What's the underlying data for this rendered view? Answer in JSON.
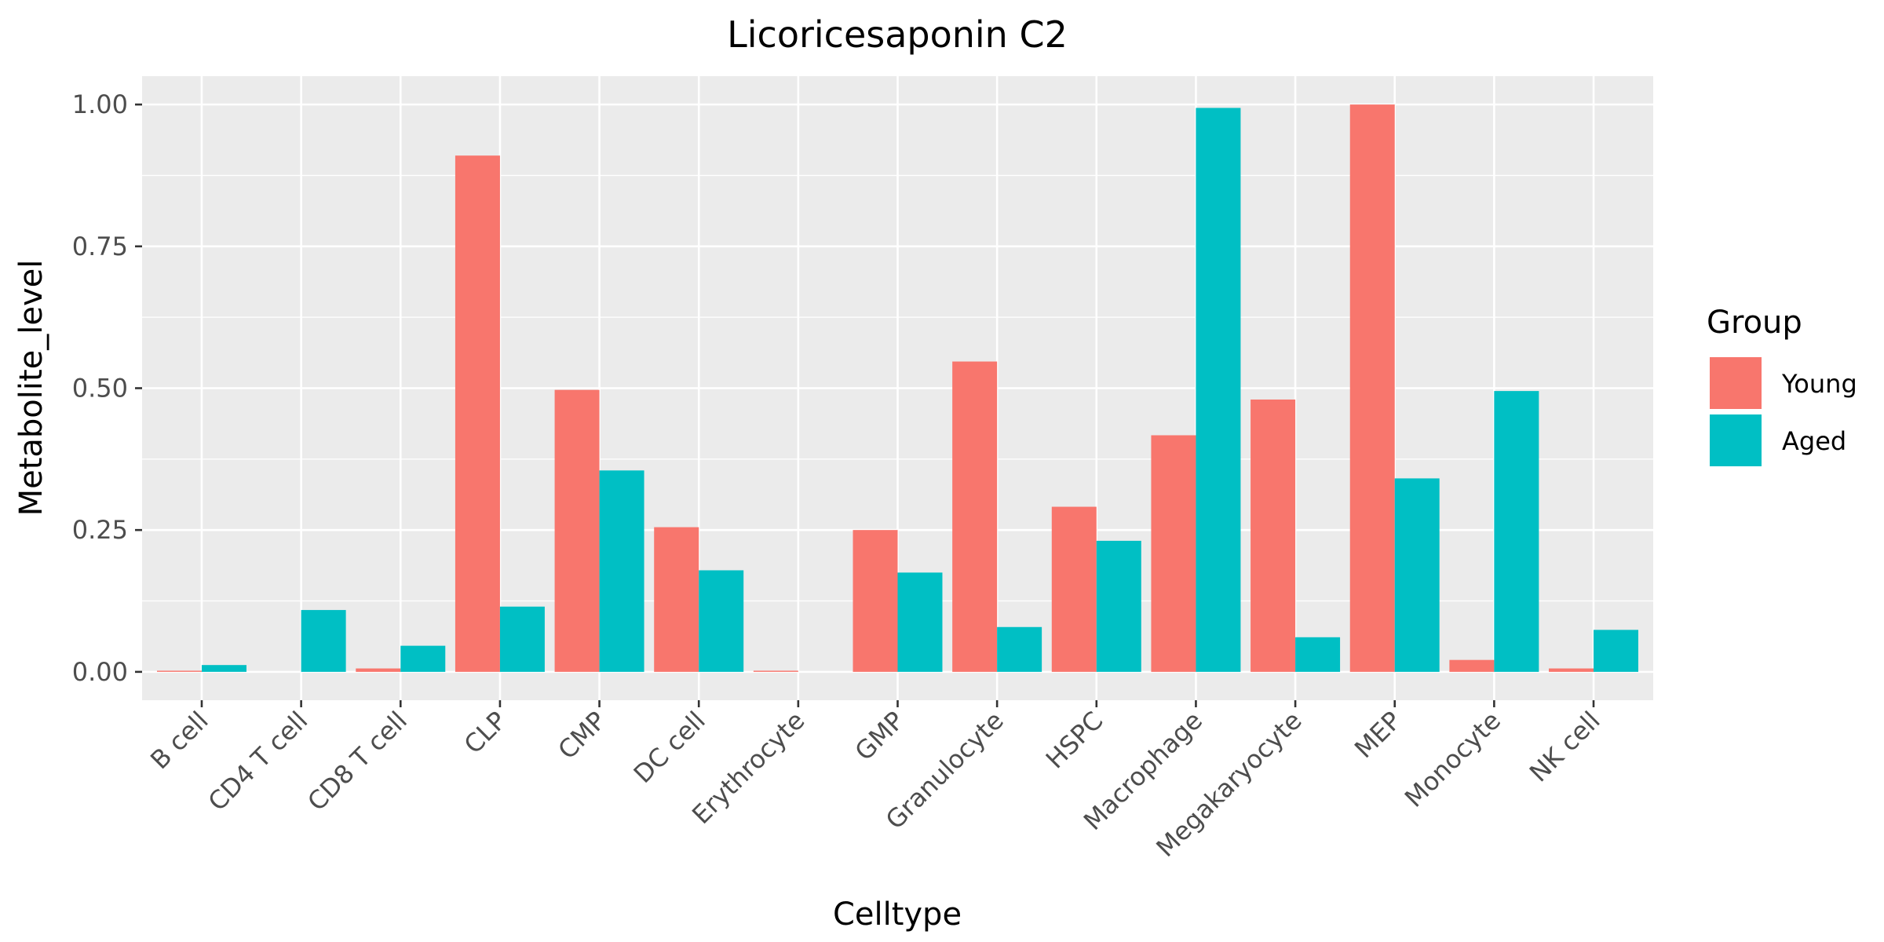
{
  "chart_data": {
    "type": "bar",
    "title": "Licoricesaponin C2",
    "xlabel": "Celltype",
    "ylabel": "Metabolite_level",
    "categories": [
      "B cell",
      "CD4 T cell",
      "CD8 T cell",
      "CLP",
      "CMP",
      "DC cell",
      "Erythrocyte",
      "GMP",
      "Granulocyte",
      "HSPC",
      "Macrophage",
      "Megakaryocyte",
      "MEP",
      "Monocyte",
      "NK cell"
    ],
    "series": [
      {
        "name": "Young",
        "color": "#F8766D",
        "values": [
          0.002,
          0.0,
          0.006,
          0.91,
          0.497,
          0.255,
          0.002,
          0.25,
          0.547,
          0.291,
          0.417,
          0.48,
          1.0,
          0.021,
          0.006
        ]
      },
      {
        "name": "Aged",
        "color": "#00BFC4",
        "values": [
          0.012,
          0.109,
          0.046,
          0.115,
          0.355,
          0.179,
          0.0,
          0.175,
          0.079,
          0.231,
          0.994,
          0.061,
          0.341,
          0.495,
          0.074
        ]
      }
    ],
    "ylim": [
      -0.05,
      1.05
    ],
    "yticks": [
      0.0,
      0.25,
      0.5,
      0.75,
      1.0
    ],
    "ytick_labels": [
      "0.00",
      "0.25",
      "0.50",
      "0.75",
      "1.00"
    ],
    "legend": {
      "title": "Group",
      "placement": "right"
    },
    "grid": true,
    "panel_background": "#EBEBEB"
  }
}
